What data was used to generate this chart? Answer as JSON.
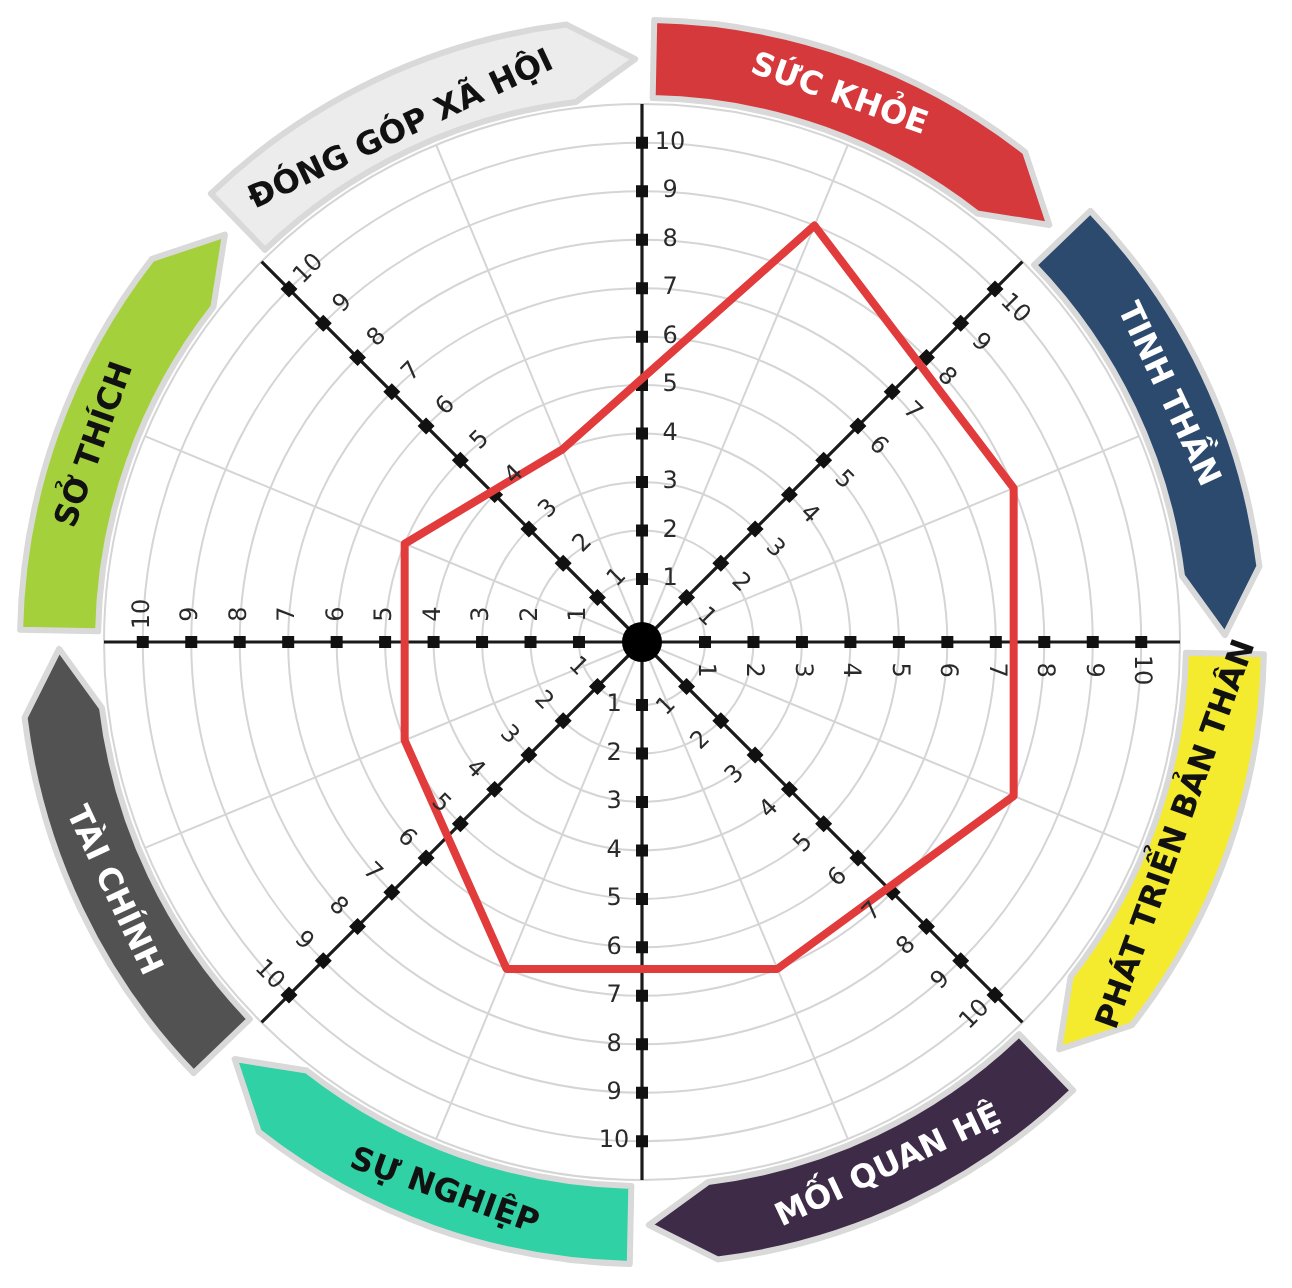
{
  "chart_data": {
    "type": "radar",
    "categories": [
      "SỨC KHỎE",
      "TINH THẦN",
      "PHÁT TRIỂN BẢN THÂN",
      "MỐI QUAN HỆ",
      "SỰ NGHIỆP",
      "TÀI CHÍNH",
      "SỞ THÍCH",
      "ĐÓNG GÓP XÃ HỘI"
    ],
    "colors": [
      "#d6393c",
      "#2c4a6e",
      "#f5eb2e",
      "#3e2b48",
      "#2fd1a5",
      "#525252",
      "#a4d13b",
      "#ececec"
    ],
    "series": [
      {
        "color": "#e13b3c",
        "values": [
          9,
          8,
          8,
          7,
          7,
          5,
          5,
          4
        ]
      }
    ],
    "ylim": [
      -0.3,
      10.8
    ],
    "yticks": [
      1,
      2,
      3,
      4,
      5,
      6,
      7,
      8,
      9,
      10
    ],
    "annotations": [
      "1",
      "2",
      "3",
      "4",
      "5",
      "6",
      "7",
      "8",
      "9",
      "10",
      "1",
      "2",
      "3",
      "4",
      "5",
      "6",
      "7",
      "8",
      "9",
      "10",
      "1",
      "2",
      "3",
      "4",
      "5",
      "6",
      "7",
      "8",
      "9",
      "10",
      "1",
      "2",
      "3",
      "4",
      "5",
      "6",
      "7",
      "8",
      "9",
      "10",
      "1",
      "2",
      "3",
      "4",
      "5",
      "6",
      "7",
      "8",
      "9",
      "10",
      "1",
      "2",
      "3",
      "4",
      "5",
      "6",
      "7",
      "8",
      "9",
      "10",
      "1",
      "2",
      "3",
      "4",
      "5",
      "6",
      "7",
      "8",
      "9",
      "10"
    ],
    "grid": true,
    "marker": "none"
  }
}
